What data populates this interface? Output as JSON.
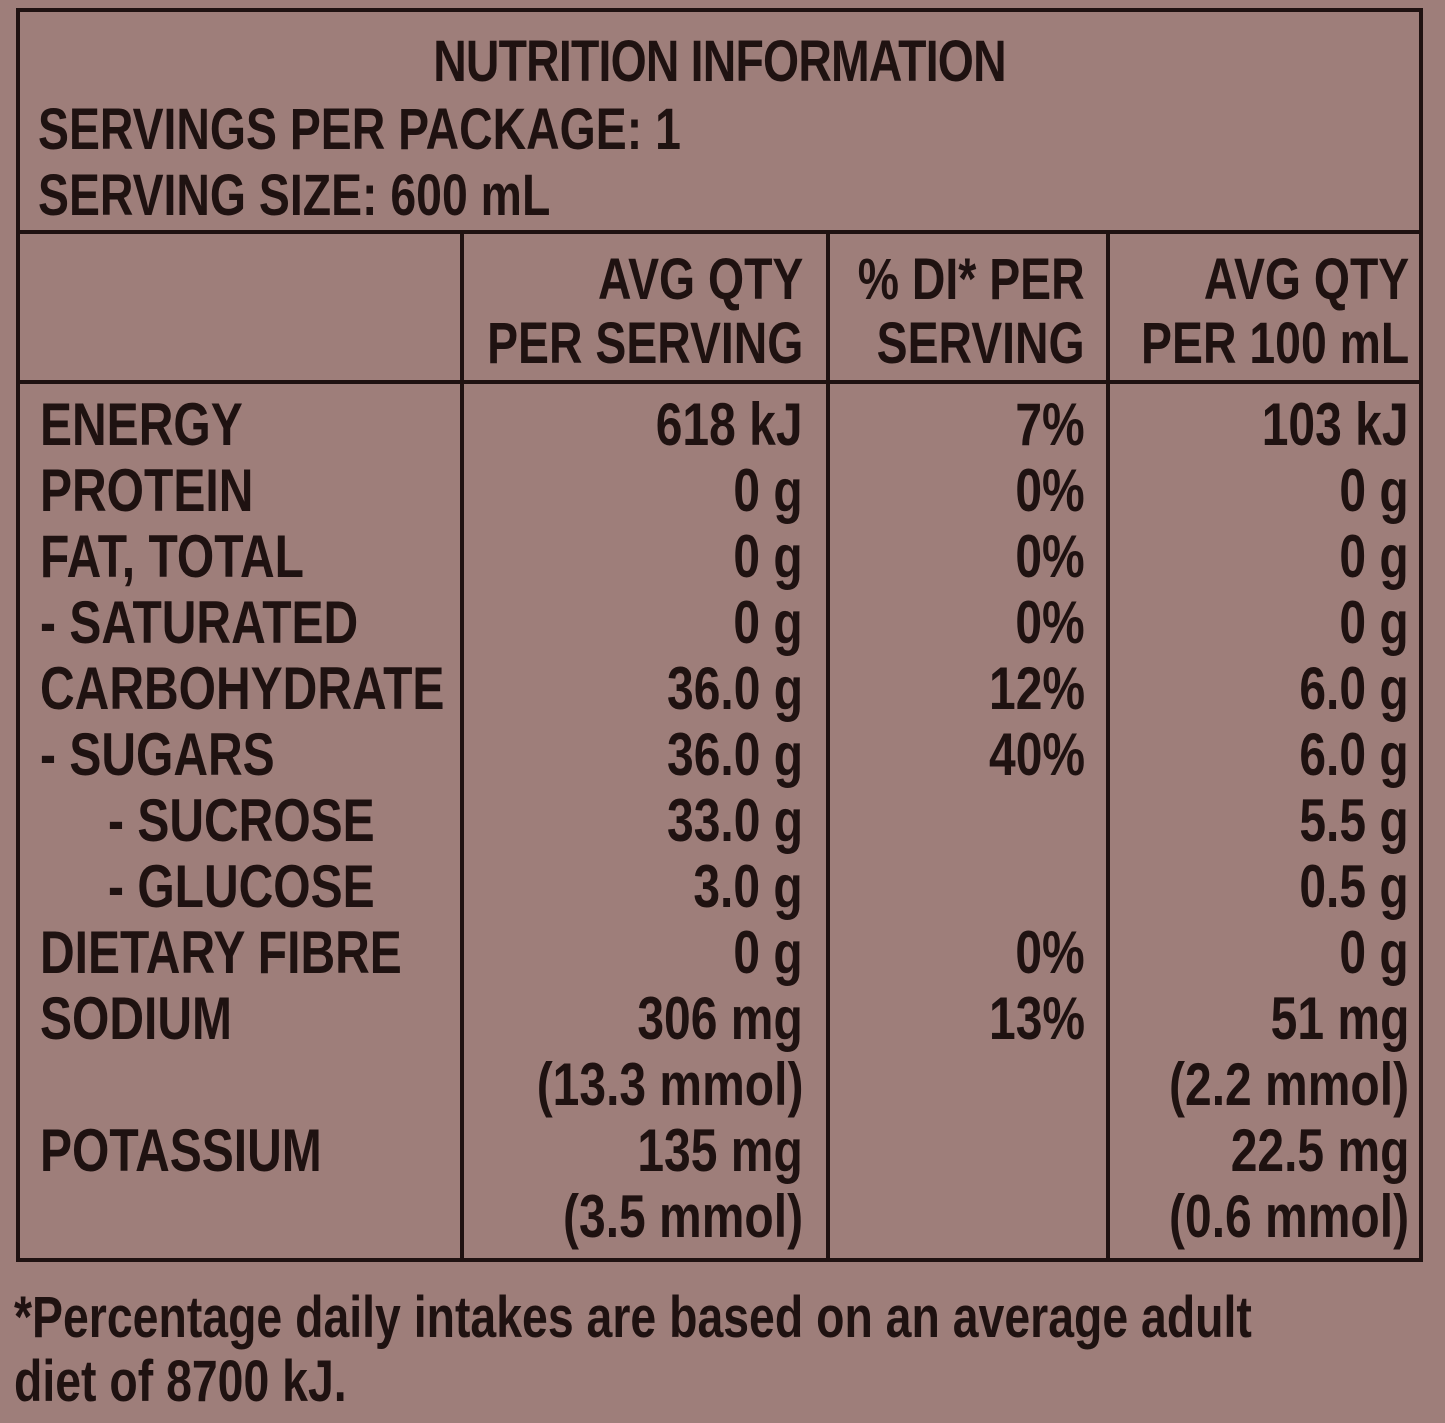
{
  "header": {
    "title": "NUTRITION INFORMATION",
    "servings_per_package": "SERVINGS PER PACKAGE: 1",
    "serving_size": "SERVING SIZE: 600 mL"
  },
  "columns": {
    "avg_serving": [
      "AVG QTY",
      "PER SERVING"
    ],
    "di_serving": [
      "% DI* PER",
      "SERVING"
    ],
    "avg_100ml": [
      "AVG QTY",
      "PER 100 mL"
    ]
  },
  "rows": [
    {
      "label": "ENERGY",
      "per_serving": "618 kJ",
      "di": "7%",
      "per_100ml": "103 kJ"
    },
    {
      "label": "PROTEIN",
      "per_serving": "0 g",
      "di": "0%",
      "per_100ml": "0 g"
    },
    {
      "label": "FAT, TOTAL",
      "per_serving": "0 g",
      "di": "0%",
      "per_100ml": "0 g"
    },
    {
      "label": "- SATURATED",
      "per_serving": "0 g",
      "di": "0%",
      "per_100ml": "0 g"
    },
    {
      "label": "CARBOHYDRATE",
      "per_serving": "36.0 g",
      "di": "12%",
      "per_100ml": "6.0 g"
    },
    {
      "label": "- SUGARS",
      "per_serving": "36.0 g",
      "di": "40%",
      "per_100ml": "6.0 g"
    },
    {
      "label": "- SUCROSE",
      "per_serving": "33.0 g",
      "di": "",
      "per_100ml": "5.5 g"
    },
    {
      "label": "- GLUCOSE",
      "per_serving": "3.0 g",
      "di": "",
      "per_100ml": "0.5 g"
    },
    {
      "label": "DIETARY FIBRE",
      "per_serving": "0 g",
      "di": "0%",
      "per_100ml": "0 g"
    },
    {
      "label": "SODIUM",
      "per_serving": "306 mg",
      "di": "13%",
      "per_100ml": "51 mg"
    },
    {
      "label": "",
      "per_serving": "(13.3 mmol)",
      "di": "",
      "per_100ml": "(2.2 mmol)"
    },
    {
      "label": "POTASSIUM",
      "per_serving": "135 mg",
      "di": "",
      "per_100ml": "22.5 mg"
    },
    {
      "label": "",
      "per_serving": "(3.5 mmol)",
      "di": "",
      "per_100ml": "(0.6 mmol)"
    }
  ],
  "footnote": [
    "*Percentage daily intakes are based on an average adult",
    "diet of 8700 kJ."
  ]
}
